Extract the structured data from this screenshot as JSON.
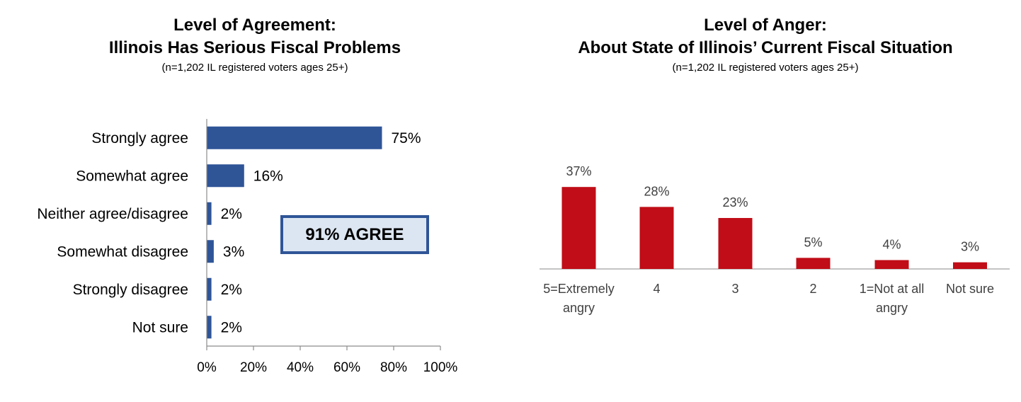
{
  "chart_data": [
    {
      "type": "bar",
      "orientation": "horizontal",
      "title_lines": [
        "Level of Agreement:",
        "Illinois Has Serious Fiscal Problems"
      ],
      "subtitle": "(n=1,202 IL registered voters ages 25+)",
      "categories": [
        "Strongly agree",
        "Somewhat agree",
        "Neither agree/disagree",
        "Somewhat disagree",
        "Strongly disagree",
        "Not sure"
      ],
      "values": [
        75,
        16,
        2,
        3,
        2,
        2
      ],
      "value_labels": [
        "75%",
        "16%",
        "2%",
        "3%",
        "2%",
        "2%"
      ],
      "xlim": [
        0,
        100
      ],
      "x_ticks": [
        0,
        20,
        40,
        60,
        80,
        100
      ],
      "x_tick_labels": [
        "0%",
        "20%",
        "40%",
        "60%",
        "80%",
        "100%"
      ],
      "callout": "91% AGREE",
      "grid": false,
      "color": "#2f5597"
    },
    {
      "type": "bar",
      "orientation": "vertical",
      "title_lines": [
        "Level of Anger:",
        "About State of Illinois’ Current Fiscal Situation"
      ],
      "subtitle": "(n=1,202 IL registered voters ages 25+)",
      "categories": [
        [
          "5=Extremely",
          "angry"
        ],
        [
          "4"
        ],
        [
          "3"
        ],
        [
          "2"
        ],
        [
          "1=Not at all",
          "angry"
        ],
        [
          "Not sure"
        ]
      ],
      "values": [
        37,
        28,
        23,
        5,
        4,
        3
      ],
      "value_labels": [
        "37%",
        "28%",
        "23%",
        "5%",
        "4%",
        "3%"
      ],
      "ylim": [
        0,
        40
      ],
      "grid": false,
      "color": "#c00d17"
    }
  ]
}
